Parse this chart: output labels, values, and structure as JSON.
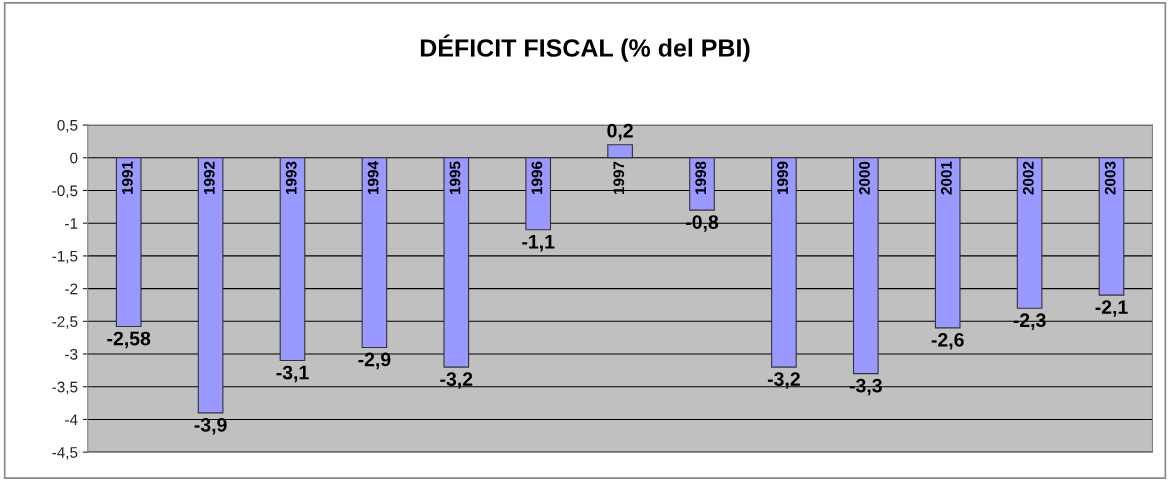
{
  "chart_data": {
    "type": "bar",
    "title": "DÉFICIT FISCAL (% del PBI)",
    "categories": [
      "1991",
      "1992",
      "1993",
      "1994",
      "1995",
      "1996",
      "1997",
      "1998",
      "1999",
      "2000",
      "2001",
      "2002",
      "2003"
    ],
    "values": [
      -2.58,
      -3.9,
      -3.1,
      -2.9,
      -3.2,
      -1.1,
      0.2,
      -0.8,
      -3.2,
      -3.3,
      -2.6,
      -2.3,
      -2.1
    ],
    "value_labels": [
      "-2,58",
      "-3,9",
      "-3,1",
      "-2,9",
      "-3,2",
      "-1,1",
      "0,2",
      "-0,8",
      "-3,2",
      "-3,3",
      "-2,6",
      "-2,3",
      "-2,1"
    ],
    "color": "#9999ff",
    "ylim": [
      -4.5,
      0.5
    ],
    "yticks": [
      {
        "value": 0.5,
        "label": "0,5"
      },
      0,
      {
        "value": -0.5,
        "label": "-0,5"
      },
      -1,
      {
        "value": -1.5,
        "label": "-1,5"
      },
      -2,
      {
        "value": -2.5,
        "label": "-2,5"
      },
      -3,
      {
        "value": -3.5,
        "label": "-3,5"
      },
      -4,
      {
        "value": -4.5,
        "label": "-4,5"
      }
    ],
    "grid": "y",
    "tick_labels": "y"
  }
}
